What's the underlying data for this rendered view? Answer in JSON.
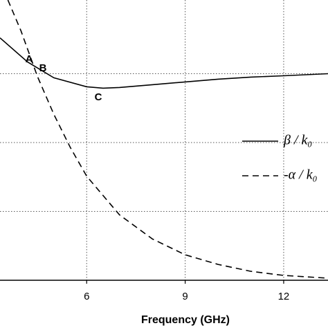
{
  "chart_data": {
    "type": "line",
    "x_label": "Frequency (GHz)",
    "xlim": [
      3.36,
      13.35
    ],
    "xticks": [
      6,
      9,
      12
    ],
    "ylim": [
      0,
      4.07
    ],
    "yticks": [
      1,
      2,
      3
    ],
    "grid": true,
    "legend": "right",
    "series": [
      {
        "name": "β / k₀",
        "color": "#000000",
        "dash": "solid",
        "x": [
          3.36,
          4.2,
          5,
          6,
          6.5,
          7,
          8,
          9,
          10,
          11,
          12,
          13.35
        ],
        "values": [
          3.52,
          3.17,
          2.94,
          2.81,
          2.79,
          2.8,
          2.84,
          2.88,
          2.92,
          2.95,
          2.97,
          3.0
        ]
      },
      {
        "name": "-α / k₀",
        "color": "#000000",
        "dash": "dashed",
        "x": [
          3.6,
          4,
          4.5,
          5,
          5.5,
          6,
          7,
          8,
          9,
          10,
          11,
          12,
          13.35
        ],
        "values": [
          4.07,
          3.62,
          2.96,
          2.41,
          1.93,
          1.51,
          0.95,
          0.6,
          0.37,
          0.23,
          0.13,
          0.07,
          0.03
        ]
      }
    ],
    "annotations": [
      "A",
      "B",
      "C"
    ]
  }
}
